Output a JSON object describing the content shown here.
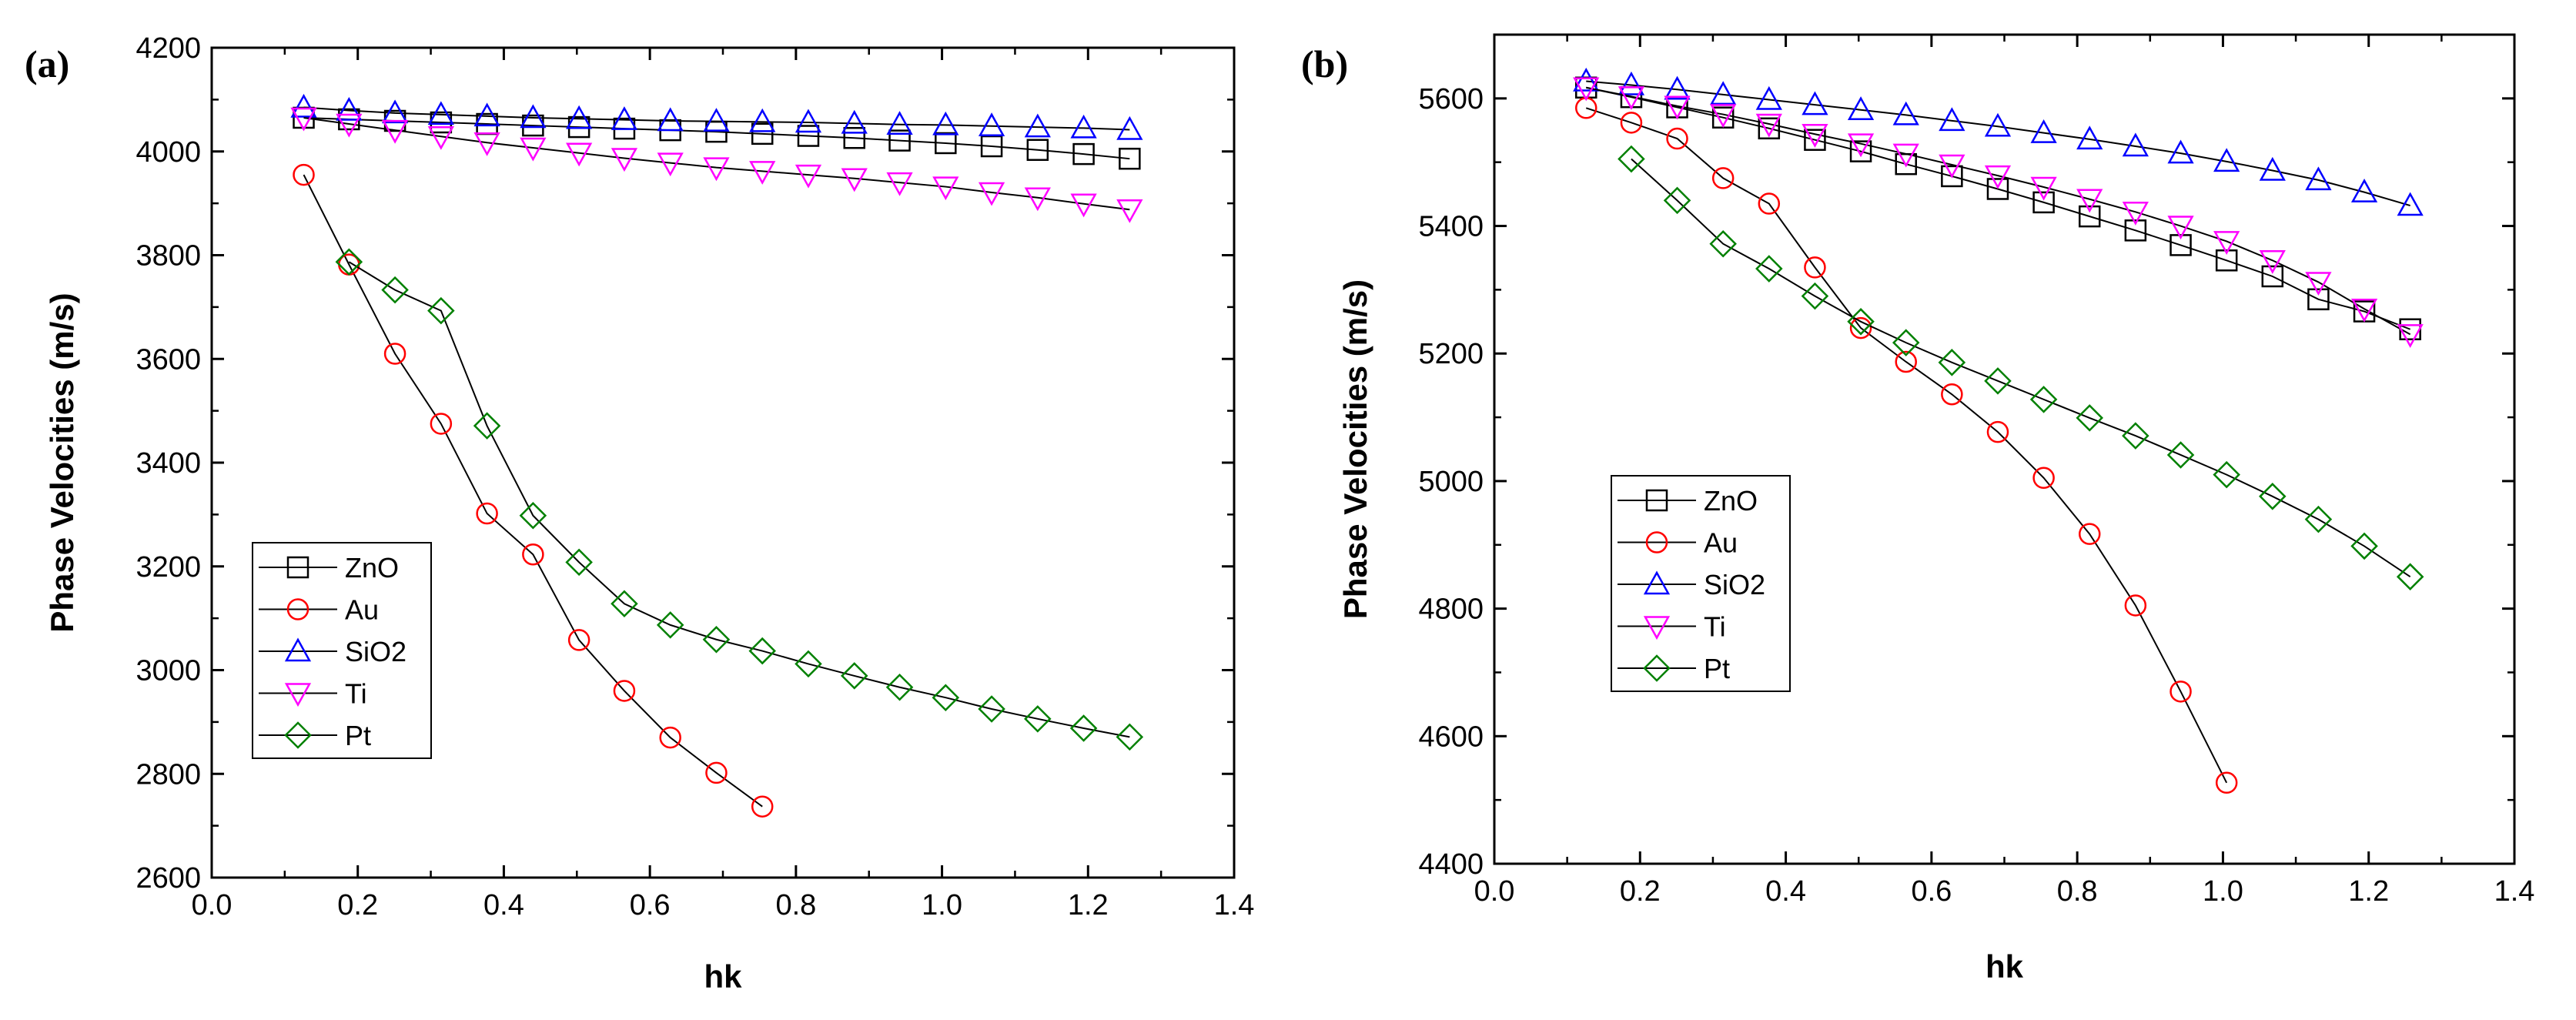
{
  "chart_data": [
    {
      "type": "line",
      "panel_label": "(a)",
      "xlabel": "hk",
      "ylabel": "Phase Velocities (m/s)",
      "xlim": [
        0.0,
        1.4
      ],
      "ylim": [
        2600,
        4200
      ],
      "xticks": [
        0.0,
        0.2,
        0.4,
        0.6,
        0.8,
        1.0,
        1.2,
        1.4
      ],
      "yticks": [
        2600,
        2800,
        3000,
        3200,
        3400,
        3600,
        3800,
        4000,
        4200
      ],
      "xtick_labels": [
        "0.0",
        "0.2",
        "0.4",
        "0.6",
        "0.8",
        "1.0",
        "1.2",
        "1.4"
      ],
      "ytick_labels": [
        "2600",
        "2800",
        "3000",
        "3200",
        "3400",
        "3600",
        "3800",
        "4000",
        "4200"
      ],
      "legend_position": "bottom-left",
      "series": [
        {
          "name": "ZnO",
          "marker": "square",
          "color": "#000000",
          "x": [
            0.126,
            0.188,
            0.251,
            0.314,
            0.377,
            0.44,
            0.503,
            0.565,
            0.628,
            0.691,
            0.754,
            0.817,
            0.88,
            0.942,
            1.005,
            1.068,
            1.131,
            1.194,
            1.257
          ],
          "y": [
            4065,
            4062,
            4059,
            4056,
            4053,
            4050,
            4047,
            4044,
            4041,
            4038,
            4034,
            4030,
            4026,
            4021,
            4016,
            4010,
            4003,
            3995,
            3986
          ]
        },
        {
          "name": "Au",
          "marker": "circle",
          "color": "#ff0000",
          "x": [
            0.126,
            0.188,
            0.251,
            0.314,
            0.377,
            0.44,
            0.503,
            0.565,
            0.628,
            0.691,
            0.754
          ],
          "y": [
            3955,
            3782,
            3610,
            3475,
            3302,
            3223,
            3058,
            2960,
            2870,
            2802,
            2737
          ]
        },
        {
          "name": "SiO2",
          "marker": "triangle-up",
          "color": "#0000ff",
          "x": [
            0.126,
            0.188,
            0.251,
            0.314,
            0.377,
            0.44,
            0.503,
            0.565,
            0.628,
            0.691,
            0.754,
            0.817,
            0.88,
            0.942,
            1.005,
            1.068,
            1.131,
            1.194,
            1.257
          ],
          "y": [
            4085,
            4079,
            4074,
            4071,
            4068,
            4065,
            4063,
            4061,
            4059,
            4058,
            4057,
            4056,
            4054,
            4052,
            4051,
            4049,
            4047,
            4045,
            4042
          ]
        },
        {
          "name": "Ti",
          "marker": "triangle-down",
          "color": "#ff00ff",
          "x": [
            0.126,
            0.188,
            0.251,
            0.314,
            0.377,
            0.44,
            0.503,
            0.565,
            0.628,
            0.691,
            0.754,
            0.817,
            0.88,
            0.942,
            1.005,
            1.068,
            1.131,
            1.194,
            1.257
          ],
          "y": [
            4065,
            4053,
            4041,
            4029,
            4017,
            4007,
            3997,
            3987,
            3978,
            3969,
            3962,
            3955,
            3948,
            3940,
            3932,
            3921,
            3911,
            3899,
            3888
          ]
        },
        {
          "name": "Pt",
          "marker": "diamond",
          "color": "#008000",
          "x": [
            0.188,
            0.251,
            0.314,
            0.377,
            0.44,
            0.503,
            0.565,
            0.628,
            0.691,
            0.754,
            0.817,
            0.88,
            0.942,
            1.005,
            1.068,
            1.131,
            1.194,
            1.257
          ],
          "y": [
            3787,
            3733,
            3693,
            3471,
            3298,
            3208,
            3128,
            3087,
            3059,
            3037,
            3012,
            2989,
            2967,
            2947,
            2925,
            2906,
            2888,
            2871
          ]
        }
      ]
    },
    {
      "type": "line",
      "panel_label": "(b)",
      "xlabel": "hk",
      "ylabel": "Phase Velocities (m/s)",
      "xlim": [
        0.0,
        1.4
      ],
      "ylim": [
        4400,
        5700
      ],
      "xticks": [
        0.0,
        0.2,
        0.4,
        0.6,
        0.8,
        1.0,
        1.2,
        1.4
      ],
      "yticks": [
        4400,
        4600,
        4800,
        5000,
        5200,
        5400,
        5600
      ],
      "xtick_labels": [
        "0.0",
        "0.2",
        "0.4",
        "0.6",
        "0.8",
        "1.0",
        "1.2",
        "1.4"
      ],
      "ytick_labels": [
        "4400",
        "4600",
        "4800",
        "5000",
        "5200",
        "5400",
        "5600"
      ],
      "legend_position": "center-left",
      "series": [
        {
          "name": "ZnO",
          "marker": "square",
          "color": "#000000",
          "x": [
            0.126,
            0.188,
            0.251,
            0.314,
            0.377,
            0.44,
            0.503,
            0.565,
            0.628,
            0.691,
            0.754,
            0.817,
            0.88,
            0.942,
            1.005,
            1.068,
            1.131,
            1.194,
            1.257
          ],
          "y": [
            5617,
            5602,
            5586,
            5570,
            5553,
            5535,
            5517,
            5497,
            5478,
            5458,
            5437,
            5415,
            5393,
            5370,
            5346,
            5321,
            5285,
            5266,
            5238
          ]
        },
        {
          "name": "Au",
          "marker": "circle",
          "color": "#ff0000",
          "x": [
            0.126,
            0.188,
            0.251,
            0.314,
            0.377,
            0.44,
            0.503,
            0.565,
            0.628,
            0.691,
            0.754,
            0.817,
            0.88,
            0.942,
            1.005
          ],
          "y": [
            5585,
            5562,
            5537,
            5475,
            5435,
            5335,
            5240,
            5187,
            5136,
            5077,
            5005,
            4917,
            4805,
            4670,
            4527
          ]
        },
        {
          "name": "SiO2",
          "marker": "triangle-up",
          "color": "#0000ff",
          "x": [
            0.126,
            0.188,
            0.251,
            0.314,
            0.377,
            0.44,
            0.503,
            0.565,
            0.628,
            0.691,
            0.754,
            0.817,
            0.88,
            0.942,
            1.005,
            1.068,
            1.131,
            1.194,
            1.257
          ],
          "y": [
            5627,
            5621,
            5614,
            5606,
            5598,
            5590,
            5582,
            5574,
            5565,
            5556,
            5546,
            5536,
            5525,
            5514,
            5501,
            5487,
            5472,
            5453,
            5432
          ]
        },
        {
          "name": "Ti",
          "marker": "triangle-down",
          "color": "#ff00ff",
          "x": [
            0.126,
            0.188,
            0.251,
            0.314,
            0.377,
            0.44,
            0.503,
            0.565,
            0.628,
            0.691,
            0.754,
            0.817,
            0.88,
            0.942,
            1.005,
            1.068,
            1.131,
            1.194,
            1.257
          ],
          "y": [
            5617,
            5603,
            5588,
            5575,
            5560,
            5544,
            5529,
            5513,
            5496,
            5479,
            5461,
            5442,
            5422,
            5400,
            5376,
            5346,
            5312,
            5270,
            5230
          ]
        },
        {
          "name": "Pt",
          "marker": "diamond",
          "color": "#008000",
          "x": [
            0.188,
            0.251,
            0.314,
            0.377,
            0.44,
            0.503,
            0.565,
            0.628,
            0.691,
            0.754,
            0.817,
            0.88,
            0.942,
            1.005,
            1.068,
            1.131,
            1.194,
            1.257
          ],
          "y": [
            5505,
            5440,
            5372,
            5333,
            5290,
            5250,
            5217,
            5186,
            5157,
            5128,
            5099,
            5071,
            5041,
            5010,
            4976,
            4940,
            4898,
            4850
          ]
        }
      ]
    }
  ]
}
